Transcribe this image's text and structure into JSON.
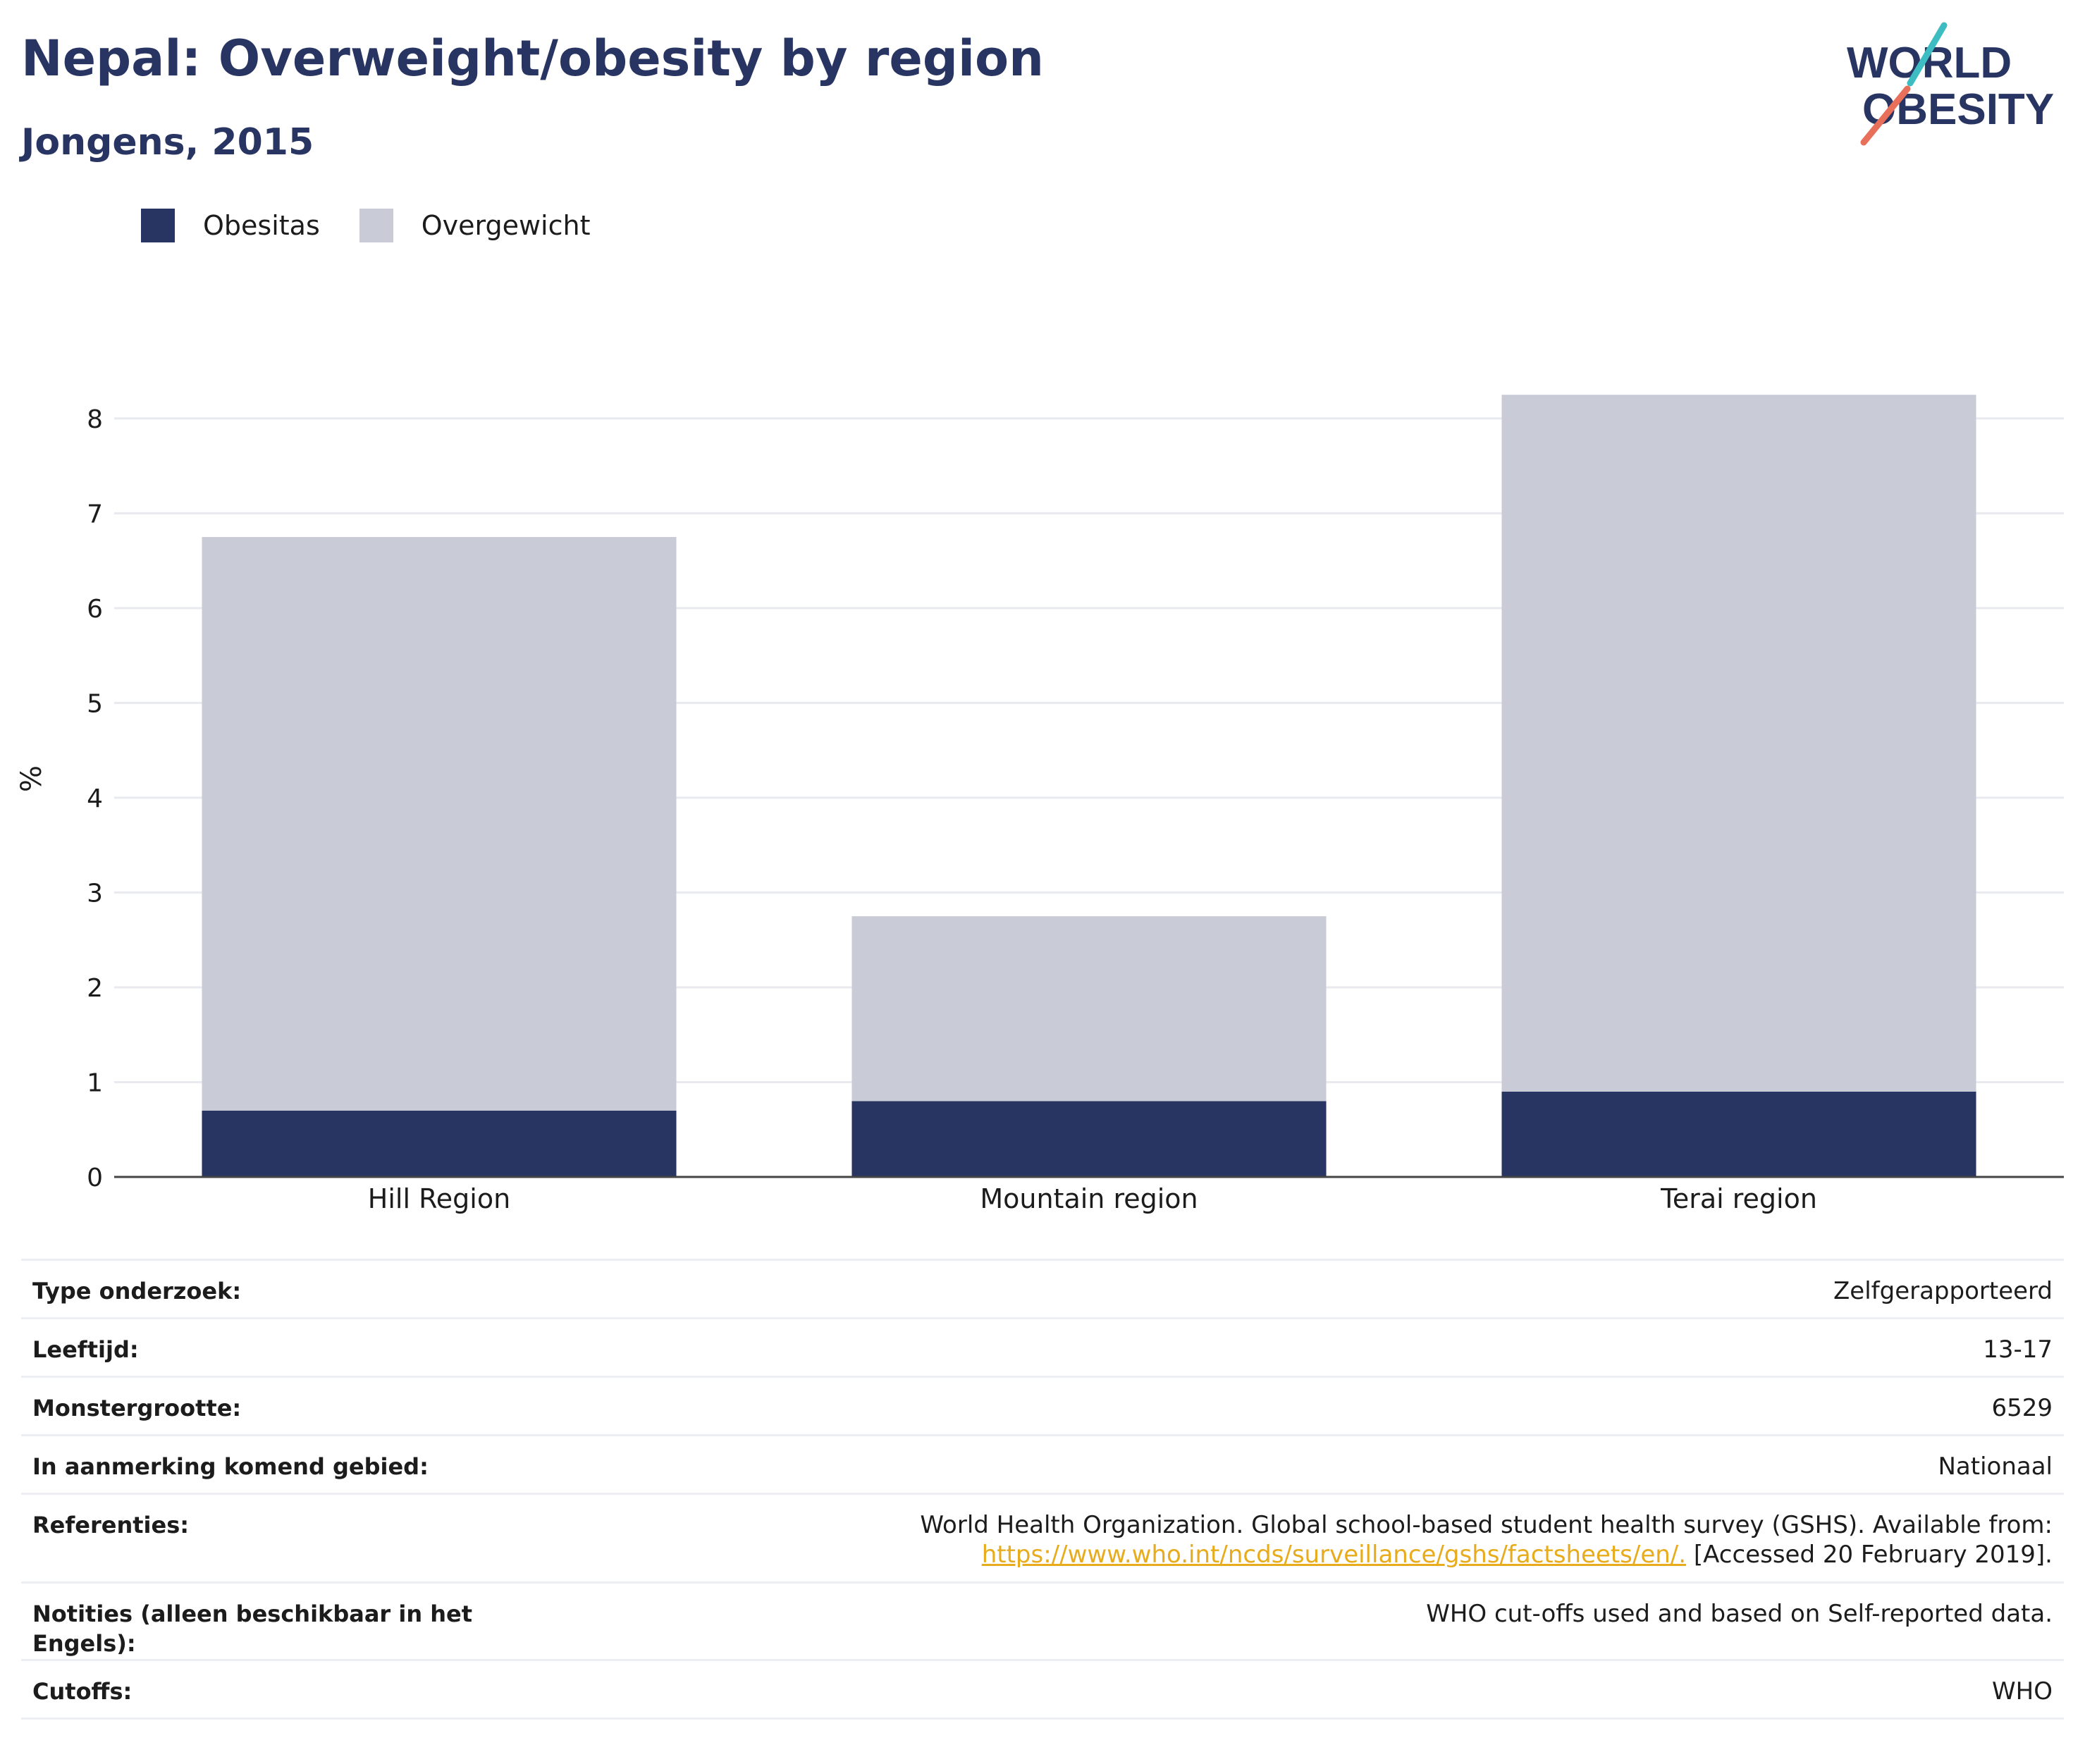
{
  "header": {
    "title": "Nepal: Overweight/obesity by region",
    "subtitle": "Jongens, 2015"
  },
  "logo": {
    "line1": "WORLD",
    "line2": "OBESITY"
  },
  "colors": {
    "obesity": "#283562",
    "overweight": "#c9cbd6",
    "heading": "#283562",
    "link": "#e8ab1c",
    "logo_teal": "#3dbdc1",
    "logo_coral": "#e8705a"
  },
  "chart_data": {
    "type": "bar",
    "stacked": true,
    "categories": [
      "Hill Region",
      "Mountain region",
      "Terai region"
    ],
    "series": [
      {
        "name": "Obesitas",
        "values": [
          0.7,
          0.8,
          0.9
        ]
      },
      {
        "name": "Overgewicht",
        "values": [
          6.05,
          1.95,
          7.35
        ]
      }
    ],
    "ylabel": "%",
    "ylim": [
      0,
      8.4
    ],
    "yticks": [
      0,
      1,
      2,
      3,
      4,
      5,
      6,
      7,
      8
    ],
    "grid": true,
    "legend_position": "top-left"
  },
  "info": {
    "survey_type": {
      "label": "Type onderzoek:",
      "value": "Zelfgerapporteerd"
    },
    "age": {
      "label": "Leeftijd:",
      "value": "13-17"
    },
    "sample_size": {
      "label": "Monstergrootte:",
      "value": "6529"
    },
    "area": {
      "label": "In aanmerking komend gebied:",
      "value": "Nationaal"
    },
    "references": {
      "label": "Referenties:",
      "text1": "World Health Organization. Global school-based student health survey (GSHS). Available from:",
      "link": "https://www.who.int/ncds/surveillance/gshs/factsheets/en/.",
      "text2": " [Accessed 20 February 2019]."
    },
    "notes": {
      "label": "Notities (alleen beschikbaar in het Engels):",
      "value": "WHO cut-offs used and based on Self-reported data."
    },
    "cutoffs": {
      "label": "Cutoffs:",
      "value": "WHO"
    }
  }
}
